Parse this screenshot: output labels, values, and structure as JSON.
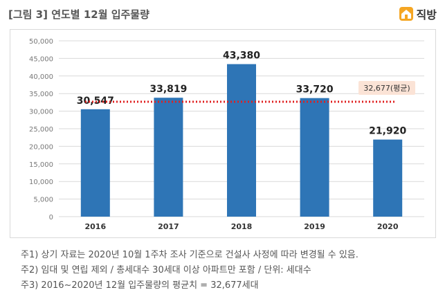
{
  "header": {
    "title": "[그림 3] 연도별 12월 입주물량",
    "logo_text": "직방",
    "logo_icon": "house-logo-icon"
  },
  "chart_data": {
    "type": "bar",
    "categories": [
      "2016",
      "2017",
      "2018",
      "2019",
      "2020"
    ],
    "values": [
      30547,
      33819,
      43380,
      33720,
      21920
    ],
    "value_labels": [
      "30,547",
      "33,819",
      "43,380",
      "33,720",
      "21,920"
    ],
    "ylim": [
      0,
      50000
    ],
    "y_ticks": [
      "0",
      "5,000",
      "10,000",
      "15,000",
      "20,000",
      "25,000",
      "30,000",
      "35,000",
      "40,000",
      "45,000",
      "50,000"
    ],
    "grid": true,
    "bar_color": "#2e75b6",
    "average": {
      "value": 32677,
      "label": "32,677(평균)",
      "line_color": "#e02020",
      "label_bg": "#fbe3d6"
    }
  },
  "notes": [
    "주1) 상기 자료는 2020년 10월 1주차 조사 기준으로 건설사 사정에 따라 변경될 수 있음.",
    "주2) 임대 및 연립 제외 / 총세대수 30세대 이상 아파트만 포함 / 단위: 세대수",
    "주3) 2016~2020년 12월 입주물량의 평균치 = 32,677세대"
  ]
}
